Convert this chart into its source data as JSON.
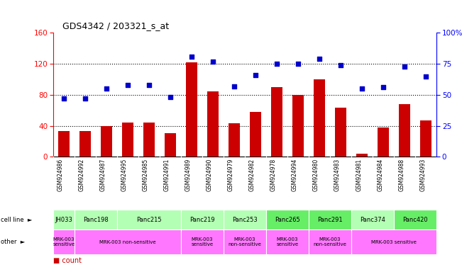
{
  "title": "GDS4342 / 203321_s_at",
  "gsm_labels": [
    "GSM924986",
    "GSM924992",
    "GSM924987",
    "GSM924995",
    "GSM924985",
    "GSM924991",
    "GSM924989",
    "GSM924990",
    "GSM924979",
    "GSM924982",
    "GSM924978",
    "GSM924994",
    "GSM924980",
    "GSM924983",
    "GSM924981",
    "GSM924984",
    "GSM924988",
    "GSM924993"
  ],
  "bar_values": [
    33,
    33,
    40,
    44,
    44,
    30,
    122,
    84,
    43,
    58,
    90,
    80,
    100,
    63,
    4,
    38,
    68,
    47
  ],
  "dot_values": [
    47,
    47,
    55,
    58,
    58,
    48,
    81,
    77,
    57,
    66,
    75,
    75,
    79,
    74,
    55,
    56,
    73,
    65
  ],
  "cell_lines": [
    {
      "label": "JH033",
      "start": 0,
      "end": 1,
      "color": "#b3ffb3"
    },
    {
      "label": "Panc198",
      "start": 1,
      "end": 3,
      "color": "#b3ffb3"
    },
    {
      "label": "Panc215",
      "start": 3,
      "end": 6,
      "color": "#b3ffb3"
    },
    {
      "label": "Panc219",
      "start": 6,
      "end": 8,
      "color": "#b3ffb3"
    },
    {
      "label": "Panc253",
      "start": 8,
      "end": 10,
      "color": "#b3ffb3"
    },
    {
      "label": "Panc265",
      "start": 10,
      "end": 12,
      "color": "#66ee66"
    },
    {
      "label": "Panc291",
      "start": 12,
      "end": 14,
      "color": "#66ee66"
    },
    {
      "label": "Panc374",
      "start": 14,
      "end": 16,
      "color": "#b3ffb3"
    },
    {
      "label": "Panc420",
      "start": 16,
      "end": 18,
      "color": "#66ee66"
    }
  ],
  "other_rows": [
    {
      "label": "MRK-003\nsensitive",
      "start": 0,
      "end": 1,
      "color": "#ff77ff"
    },
    {
      "label": "MRK-003 non-sensitive",
      "start": 1,
      "end": 6,
      "color": "#ff77ff"
    },
    {
      "label": "MRK-003\nsensitive",
      "start": 6,
      "end": 8,
      "color": "#ff77ff"
    },
    {
      "label": "MRK-003\nnon-sensitive",
      "start": 8,
      "end": 10,
      "color": "#ff77ff"
    },
    {
      "label": "MRK-003\nsensitive",
      "start": 10,
      "end": 12,
      "color": "#ff77ff"
    },
    {
      "label": "MRK-003\nnon-sensitive",
      "start": 12,
      "end": 14,
      "color": "#ff77ff"
    },
    {
      "label": "MRK-003 sensitive",
      "start": 14,
      "end": 18,
      "color": "#ff77ff"
    }
  ],
  "left_ylim": [
    0,
    160
  ],
  "left_yticks": [
    0,
    40,
    80,
    120,
    160
  ],
  "right_ylim": [
    0,
    100
  ],
  "right_yticks": [
    0,
    25,
    50,
    75,
    100
  ],
  "bar_color": "#cc0000",
  "dot_color": "#0000cc",
  "background_color": "#ffffff",
  "gsm_bg_color": "#cccccc",
  "cell_border_color": "#ffffff"
}
